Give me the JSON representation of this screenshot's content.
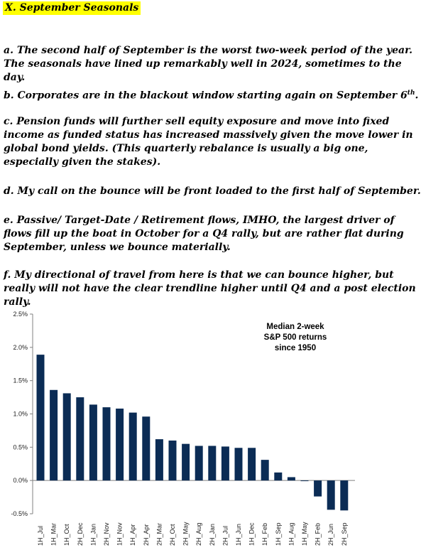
{
  "heading": "X. September Seasonals",
  "paragraphs": {
    "a": "a.  The second half of September is the worst two-week period of the year. The seasonals have lined up remarkably well in 2024, sometimes to the day.",
    "b_main": "b. Corporates are in the blackout window starting again on September 6",
    "b_sup": "th",
    "b_end": ".",
    "c": "c. Pension funds will further sell equity exposure and move into fixed income as funded status has increased massively given the move lower in global bond yields. (This quarterly rebalance is usually a big one, especially given the stakes).",
    "d": "d. My call on the bounce will be front loaded to the first half of September.",
    "e": "e. Passive/ Target-Date / Retirement flows, IMHO, the largest driver of flows fill up the boat in October for a Q4 rally, but are rather flat during September, unless we bounce materially.",
    "f": "f. My directional of travel from here is that we can bounce higher, but really will not have the clear trendline higher until Q4 and a post election rally."
  },
  "chart_data": {
    "type": "bar",
    "title_lines": [
      "Median 2-week",
      "S&P 500 returns",
      "since 1950"
    ],
    "categories": [
      "1H_Jul",
      "1H_Mar",
      "1H_Oct",
      "2H_Dec",
      "1H_Jan",
      "2H_Nov",
      "1H_Nov",
      "1H_Apr",
      "2H_Apr",
      "2H_Mar",
      "2H_Oct",
      "2H_May",
      "2H_Aug",
      "2H_Jan",
      "2H_Jul",
      "1H_Jun",
      "1H_Dec",
      "1H_Feb",
      "1H_Sep",
      "1H_Aug",
      "1H_May",
      "2H_Feb",
      "2H_Jun",
      "2H_Sep"
    ],
    "values": [
      1.89,
      1.36,
      1.31,
      1.25,
      1.14,
      1.1,
      1.08,
      1.02,
      0.96,
      0.62,
      0.6,
      0.55,
      0.52,
      0.52,
      0.51,
      0.49,
      0.49,
      0.31,
      0.12,
      0.05,
      -0.01,
      -0.24,
      -0.44,
      -0.45
    ],
    "yticks": [
      "2.5%",
      "2.0%",
      "1.5%",
      "1.0%",
      "0.5%",
      "0.0%",
      "-0.5%"
    ],
    "ylim": [
      -0.5,
      2.5
    ],
    "bar_color": "#0b2c55",
    "legend_position": "top-right",
    "grid": false
  }
}
